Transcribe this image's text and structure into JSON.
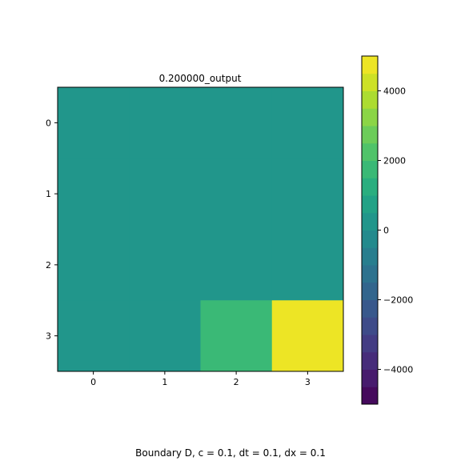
{
  "chart_data": {
    "type": "heatmap",
    "title": "0.200000_output",
    "caption": "Boundary D, c = 0.1, dt = 0.1, dx = 0.1",
    "x_ticks": [
      "0",
      "1",
      "2",
      "3"
    ],
    "y_ticks": [
      "0",
      "1",
      "2",
      "3"
    ],
    "values": [
      [
        0,
        0,
        0,
        0
      ],
      [
        0,
        0,
        0,
        0
      ],
      [
        0,
        0,
        0,
        200
      ],
      [
        0,
        0,
        1500,
        5000
      ]
    ],
    "colormap": "viridis",
    "color_levels": 20,
    "vmin": -5000,
    "vmax": 5000,
    "colorbar_ticks": [
      {
        "value": 4000,
        "label": "4000"
      },
      {
        "value": 2000,
        "label": "2000"
      },
      {
        "value": 0,
        "label": "0"
      },
      {
        "value": -2000,
        "label": "−2000"
      },
      {
        "value": -4000,
        "label": "−4000"
      }
    ]
  }
}
